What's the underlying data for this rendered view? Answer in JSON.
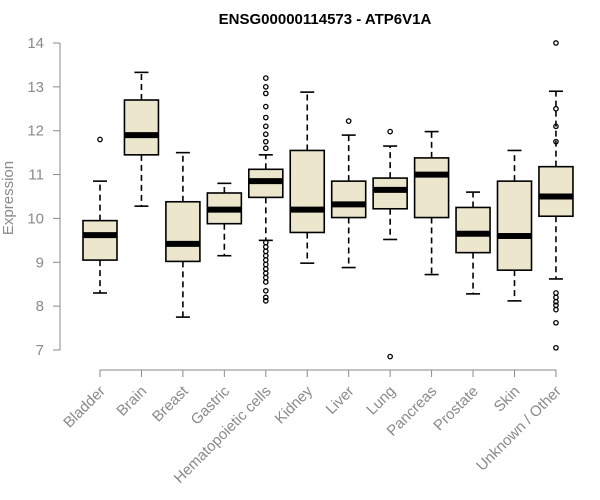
{
  "chart_data": {
    "type": "boxplot",
    "title": "ENSG00000114573 - ATP6V1A",
    "xlabel": "",
    "ylabel": "Expression",
    "ylim": [
      6.7,
      14.3
    ],
    "yticks": [
      7,
      8,
      9,
      10,
      11,
      12,
      13,
      14
    ],
    "box_color": "#ece6cd",
    "categories": [
      "Bladder",
      "Brain",
      "Breast",
      "Gastric",
      "Hematopoietic cells",
      "Kidney",
      "Liver",
      "Lung",
      "Pancreas",
      "Prostate",
      "Skin",
      "Unknown / Other"
    ],
    "boxes": [
      {
        "name": "Bladder",
        "whisker_low": 8.3,
        "q1": 9.05,
        "median": 9.62,
        "q3": 9.95,
        "whisker_high": 10.85,
        "outliers": [
          11.8
        ]
      },
      {
        "name": "Brain",
        "whisker_low": 10.28,
        "q1": 11.45,
        "median": 11.9,
        "q3": 12.7,
        "whisker_high": 13.33,
        "outliers": []
      },
      {
        "name": "Breast",
        "whisker_low": 7.75,
        "q1": 9.02,
        "median": 9.42,
        "q3": 10.38,
        "whisker_high": 11.5,
        "outliers": []
      },
      {
        "name": "Gastric",
        "whisker_low": 9.15,
        "q1": 9.88,
        "median": 10.2,
        "q3": 10.58,
        "whisker_high": 10.8,
        "outliers": []
      },
      {
        "name": "Hematopoietic cells",
        "whisker_low": 9.5,
        "q1": 10.48,
        "median": 10.85,
        "q3": 11.12,
        "whisker_high": 11.45,
        "outliers": [
          13.2,
          13.0,
          12.85,
          12.55,
          12.3,
          12.1,
          11.92,
          11.75,
          11.6,
          9.45,
          9.35,
          9.25,
          9.15,
          9.05,
          8.95,
          8.85,
          8.75,
          8.65,
          8.55,
          8.35,
          8.2,
          8.12
        ]
      },
      {
        "name": "Kidney",
        "whisker_low": 8.98,
        "q1": 9.68,
        "median": 10.2,
        "q3": 11.55,
        "whisker_high": 12.88,
        "outliers": []
      },
      {
        "name": "Liver",
        "whisker_low": 8.88,
        "q1": 10.02,
        "median": 10.32,
        "q3": 10.85,
        "whisker_high": 11.9,
        "outliers": [
          12.22
        ]
      },
      {
        "name": "Lung",
        "whisker_low": 9.52,
        "q1": 10.22,
        "median": 10.65,
        "q3": 10.92,
        "whisker_high": 11.65,
        "outliers": [
          11.98,
          6.85
        ]
      },
      {
        "name": "Pancreas",
        "whisker_low": 8.72,
        "q1": 10.02,
        "median": 11.0,
        "q3": 11.38,
        "whisker_high": 11.98,
        "outliers": []
      },
      {
        "name": "Prostate",
        "whisker_low": 8.28,
        "q1": 9.22,
        "median": 9.65,
        "q3": 10.25,
        "whisker_high": 10.6,
        "outliers": []
      },
      {
        "name": "Skin",
        "whisker_low": 8.12,
        "q1": 8.82,
        "median": 9.6,
        "q3": 10.85,
        "whisker_high": 11.55,
        "outliers": []
      },
      {
        "name": "Unknown / Other",
        "whisker_low": 8.62,
        "q1": 10.05,
        "median": 10.5,
        "q3": 11.18,
        "whisker_high": 12.9,
        "outliers": [
          14.0,
          12.5,
          12.1,
          11.75,
          8.3,
          8.2,
          8.1,
          8.02,
          7.92,
          7.62,
          7.05
        ]
      }
    ]
  }
}
